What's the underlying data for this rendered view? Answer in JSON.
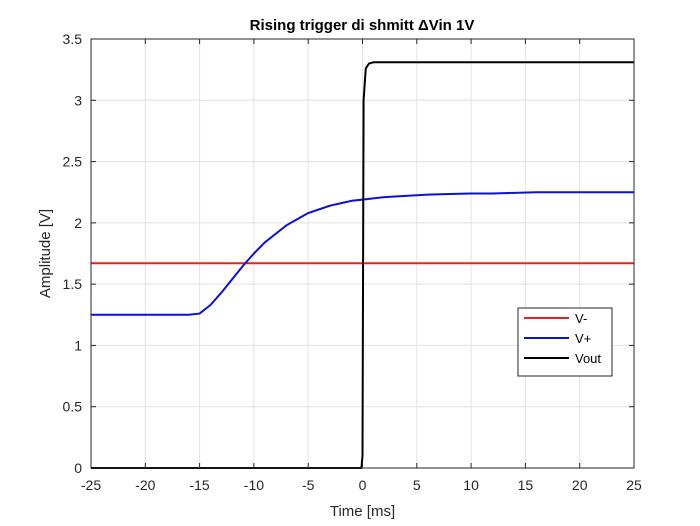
{
  "chart_data": {
    "type": "line",
    "title": "Rising trigger di shmitt ΔVin 1V",
    "xlabel": "Time [ms]",
    "ylabel": "Amplitude [V]",
    "xlim": [
      -25,
      25
    ],
    "ylim": [
      0,
      3.5
    ],
    "xticks": [
      -25,
      -20,
      -15,
      -10,
      -5,
      0,
      5,
      10,
      15,
      20,
      25
    ],
    "yticks": [
      0,
      0.5,
      1,
      1.5,
      2,
      2.5,
      3,
      3.5
    ],
    "xtick_labels": [
      "-25",
      "-20",
      "-15",
      "-10",
      "-5",
      "0",
      "5",
      "10",
      "15",
      "20",
      "25"
    ],
    "ytick_labels": [
      "0",
      "0.5",
      "1",
      "1.5",
      "2",
      "2.5",
      "3",
      "3.5"
    ],
    "grid": true,
    "legend_position": "lower-right",
    "series": [
      {
        "name": "V-",
        "color": "#e8201f",
        "x": [
          -25,
          25
        ],
        "y": [
          1.67,
          1.67
        ]
      },
      {
        "name": "V+",
        "color": "#0a10d6",
        "x": [
          -25,
          -16,
          -15,
          -14,
          -13,
          -12,
          -11,
          -10,
          -9,
          -8,
          -7,
          -6,
          -5,
          -4,
          -3,
          -2,
          -1,
          0,
          2,
          4,
          6,
          8,
          10,
          12,
          14,
          16,
          18,
          20,
          22,
          25
        ],
        "y": [
          1.25,
          1.25,
          1.26,
          1.33,
          1.43,
          1.54,
          1.65,
          1.75,
          1.84,
          1.91,
          1.98,
          2.03,
          2.08,
          2.11,
          2.14,
          2.16,
          2.18,
          2.19,
          2.21,
          2.22,
          2.23,
          2.235,
          2.24,
          2.24,
          2.245,
          2.25,
          2.25,
          2.25,
          2.25,
          2.25
        ]
      },
      {
        "name": "Vout",
        "color": "#000000",
        "x": [
          -25,
          -0.1,
          0,
          0.1,
          0.3,
          0.6,
          1,
          5,
          25
        ],
        "y": [
          0.0,
          0.0,
          0.1,
          3.0,
          3.26,
          3.3,
          3.31,
          3.31,
          3.31
        ]
      }
    ]
  }
}
